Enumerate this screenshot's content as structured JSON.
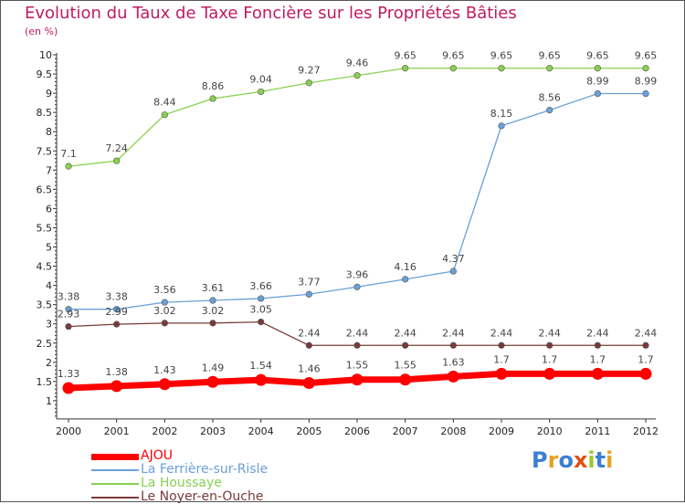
{
  "title": "Evolution du Taux de Taxe Foncière sur les Propriétés Bâties",
  "subtitle": "(en %)",
  "logo": "Proxiti",
  "chart_data": {
    "type": "line",
    "categories": [
      "2000",
      "2001",
      "2002",
      "2003",
      "2004",
      "2005",
      "2006",
      "2007",
      "2008",
      "2009",
      "2010",
      "2011",
      "2012"
    ],
    "ylim": [
      1,
      10
    ],
    "yticks": [
      "1",
      "1.5",
      "2",
      "2.5",
      "3",
      "3.5",
      "4",
      "4.5",
      "5",
      "5.5",
      "6",
      "6.5",
      "7",
      "7.5",
      "8",
      "8.5",
      "9",
      "9.5",
      "10"
    ],
    "grid": false,
    "legend_position": "bottom-left",
    "series": [
      {
        "name": "AJOU",
        "color": "#ff0000",
        "values": [
          1.33,
          1.38,
          1.43,
          1.49,
          1.54,
          1.46,
          1.55,
          1.55,
          1.63,
          1.7,
          1.7,
          1.7,
          1.7
        ],
        "labels": [
          "1.33",
          "1.38",
          "1.43",
          "1.49",
          "1.54",
          "1.46",
          "1.55",
          "1.55",
          "1.63",
          "1.7",
          "1.7",
          "1.7",
          "1.7"
        ]
      },
      {
        "name": "La Ferrière-sur-Risle",
        "color": "#6aa0d8",
        "values": [
          3.38,
          3.38,
          3.56,
          3.61,
          3.66,
          3.77,
          3.96,
          4.16,
          4.37,
          8.15,
          8.56,
          8.99,
          8.99
        ],
        "labels": [
          "3.38",
          "3.38",
          "3.56",
          "3.61",
          "3.66",
          "3.77",
          "3.96",
          "4.16",
          "4.37",
          "8.15",
          "8.56",
          "8.99",
          "8.99"
        ]
      },
      {
        "name": "La Houssaye",
        "color": "#88d050",
        "values": [
          7.1,
          7.24,
          8.44,
          8.86,
          9.04,
          9.27,
          9.46,
          9.65,
          9.65,
          9.65,
          9.65,
          9.65,
          9.65
        ],
        "labels": [
          "7.1",
          "7.24",
          "8.44",
          "8.86",
          "9.04",
          "9.27",
          "9.46",
          "9.65",
          "9.65",
          "9.65",
          "9.65",
          "9.65",
          "9.65"
        ]
      },
      {
        "name": "Le Noyer-en-Ouche",
        "color": "#7a3a3a",
        "values": [
          2.93,
          2.99,
          3.02,
          3.02,
          3.05,
          2.44,
          2.44,
          2.44,
          2.44,
          2.44,
          2.44,
          2.44,
          2.44
        ],
        "labels": [
          "2.93",
          "2.99",
          "3.02",
          "3.02",
          "3.05",
          "2.44",
          "2.44",
          "2.44",
          "2.44",
          "2.44",
          "2.44",
          "2.44",
          "2.44"
        ]
      }
    ]
  }
}
